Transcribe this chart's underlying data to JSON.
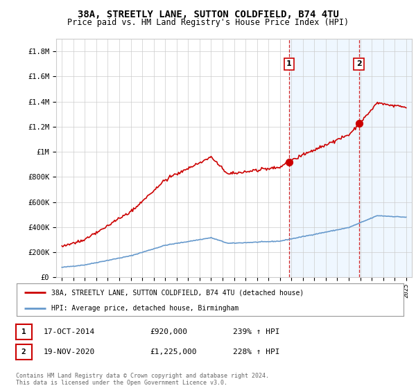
{
  "title": "38A, STREETLY LANE, SUTTON COLDFIELD, B74 4TU",
  "subtitle": "Price paid vs. HM Land Registry's House Price Index (HPI)",
  "ylim": [
    0,
    1900000
  ],
  "yticks": [
    0,
    200000,
    400000,
    600000,
    800000,
    1000000,
    1200000,
    1400000,
    1600000,
    1800000
  ],
  "ytick_labels": [
    "£0",
    "£200K",
    "£400K",
    "£600K",
    "£800K",
    "£1M",
    "£1.2M",
    "£1.4M",
    "£1.6M",
    "£1.8M"
  ],
  "property_color": "#cc0000",
  "hpi_color": "#6699cc",
  "marker1_date": 2014.8,
  "marker1_price": 920000,
  "marker2_date": 2020.88,
  "marker2_price": 1225000,
  "legend_property": "38A, STREETLY LANE, SUTTON COLDFIELD, B74 4TU (detached house)",
  "legend_hpi": "HPI: Average price, detached house, Birmingham",
  "table_row1": [
    "1",
    "17-OCT-2014",
    "£920,000",
    "239% ↑ HPI"
  ],
  "table_row2": [
    "2",
    "19-NOV-2020",
    "£1,225,000",
    "228% ↑ HPI"
  ],
  "footer": "Contains HM Land Registry data © Crown copyright and database right 2024.\nThis data is licensed under the Open Government Licence v3.0.",
  "bg_color": "#ffffff",
  "grid_color": "#cccccc",
  "shade_color": "#ddeeff"
}
